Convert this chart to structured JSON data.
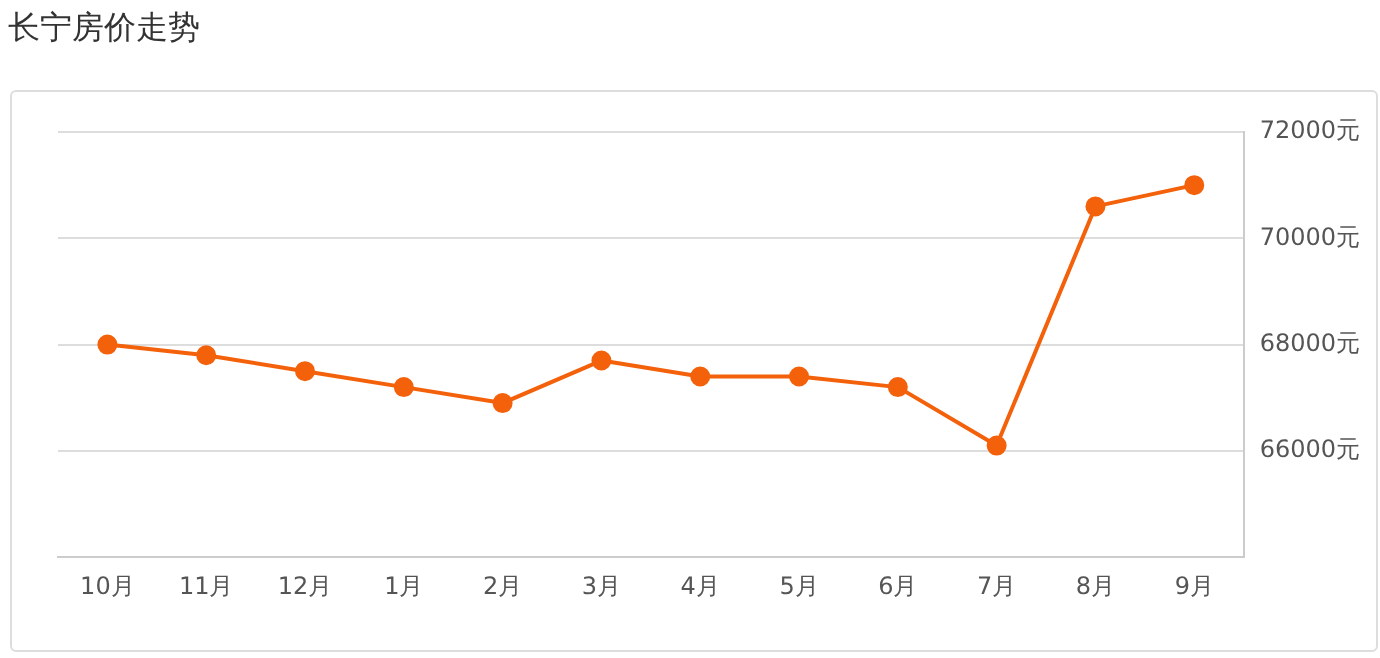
{
  "chart_data": {
    "type": "line",
    "title": "长宁房价走势",
    "categories": [
      "10月",
      "11月",
      "12月",
      "1月",
      "2月",
      "3月",
      "4月",
      "5月",
      "6月",
      "7月",
      "8月",
      "9月"
    ],
    "series": [
      {
        "color": "#f4610b",
        "values": [
          68000,
          67800,
          67500,
          67200,
          66900,
          67700,
          67400,
          67400,
          67200,
          66100,
          70600,
          71000
        ]
      }
    ],
    "ylim": [
      64000,
      72000
    ],
    "yticks": [
      {
        "value": 66000,
        "label": "66000元"
      },
      {
        "value": 68000,
        "label": "68000元"
      },
      {
        "value": 70000,
        "label": "70000元"
      },
      {
        "value": 72000,
        "label": "72000元"
      }
    ],
    "grid": "y",
    "legend": false,
    "marker": "circle",
    "line_style": "solid"
  }
}
